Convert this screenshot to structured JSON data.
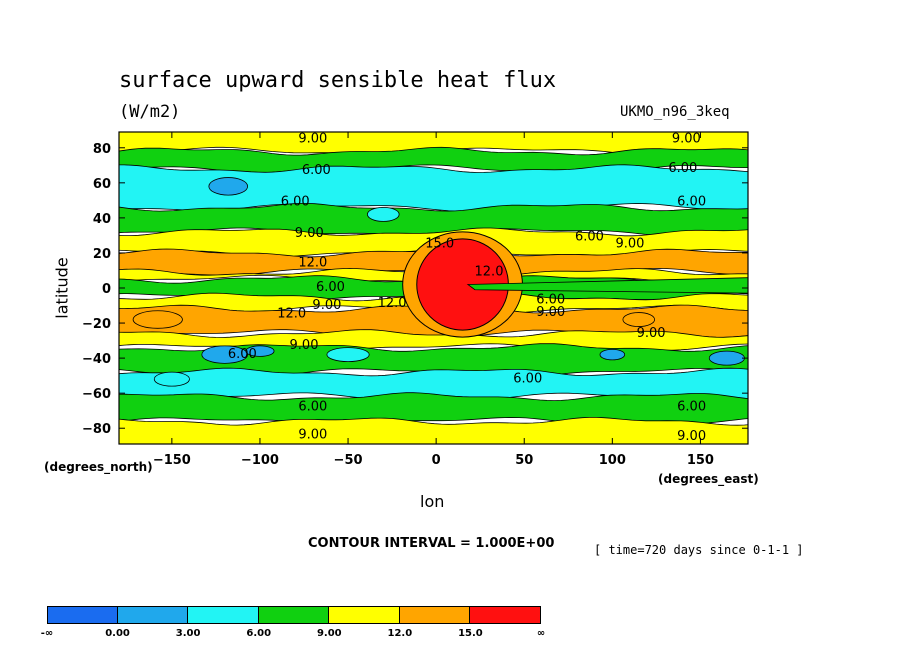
{
  "header": {
    "title": "surface upward sensible heat flux",
    "units": "(W/m2)",
    "model": "UKMO_n96_3keq"
  },
  "axes": {
    "xlabel": "lon",
    "ylabel": "latitude",
    "xunit_note": "(degrees_east)",
    "yunit_note": "(degrees_north)"
  },
  "footer": {
    "contour_interval": "CONTOUR INTERVAL = 1.000E+00",
    "time": "[ time=720 days since 0-1-1 ]"
  },
  "colorbar": {
    "labels": [
      "-∞",
      "0.00",
      "3.00",
      "6.00",
      "9.00",
      "12.0",
      "15.0",
      "∞"
    ],
    "colors": [
      "#1a6cf0",
      "#20a8ec",
      "#22f4f4",
      "#10d010",
      "#ffff00",
      "#ffa500",
      "#ff1010"
    ]
  },
  "chart_data": {
    "type": "heatmap",
    "title": "surface upward sensible heat flux",
    "subtitle": "(W/m2)",
    "xlabel": "lon",
    "ylabel": "latitude",
    "xlim": [
      -180,
      177
    ],
    "ylim": [
      -89,
      89
    ],
    "xticks": [
      -150,
      -100,
      -50,
      0,
      50,
      100,
      150
    ],
    "yticks": [
      80,
      60,
      40,
      20,
      0,
      -20,
      -40,
      -60,
      -80
    ],
    "levels": [
      0,
      3,
      6,
      9,
      12,
      15
    ],
    "level_colors": [
      "#1a6cf0",
      "#20a8ec",
      "#22f4f4",
      "#10d010",
      "#ffff00",
      "#ffa500",
      "#ff1010"
    ],
    "bands_by_latitude": [
      {
        "lat_min": 78,
        "lat_max": 89,
        "level": 9
      },
      {
        "lat_min": 68,
        "lat_max": 78,
        "level": 6
      },
      {
        "lat_min": 46,
        "lat_max": 68,
        "level": 3
      },
      {
        "lat_min": 32,
        "lat_max": 46,
        "level": 6
      },
      {
        "lat_min": 20,
        "lat_max": 32,
        "level": 9
      },
      {
        "lat_min": 9,
        "lat_max": 20,
        "level": 12
      },
      {
        "lat_min": 5,
        "lat_max": 9,
        "level": 9
      },
      {
        "lat_min": -5,
        "lat_max": 5,
        "level": 6
      },
      {
        "lat_min": -12,
        "lat_max": -5,
        "level": 9
      },
      {
        "lat_min": -26,
        "lat_max": -12,
        "level": 12
      },
      {
        "lat_min": -34,
        "lat_max": -26,
        "level": 9
      },
      {
        "lat_min": -48,
        "lat_max": -34,
        "level": 6
      },
      {
        "lat_min": -62,
        "lat_max": -48,
        "level": 3
      },
      {
        "lat_min": -76,
        "lat_max": -62,
        "level": 6
      },
      {
        "lat_min": -89,
        "lat_max": -76,
        "level": 9
      }
    ],
    "features": [
      {
        "name": "african-maximum",
        "lon_center": 15,
        "lat_center": 2,
        "peak_level": 15
      },
      {
        "name": "southern-blue-patches",
        "lon_center": -120,
        "lat_center": -40,
        "level": 0
      },
      {
        "name": "northern-blue-patch",
        "lon_center": -115,
        "lat_center": 58,
        "level": 0
      }
    ],
    "contour_labels": [
      {
        "text": "9.00",
        "lon": -70,
        "lat": 86
      },
      {
        "text": "9.00",
        "lon": 142,
        "lat": 86
      },
      {
        "text": "6.00",
        "lon": -68,
        "lat": 68
      },
      {
        "text": "6.00",
        "lon": 140,
        "lat": 69
      },
      {
        "text": "6.00",
        "lon": -80,
        "lat": 50
      },
      {
        "text": "6.00",
        "lon": 145,
        "lat": 50
      },
      {
        "text": "6.00",
        "lon": 87,
        "lat": 30
      },
      {
        "text": "9.00",
        "lon": 110,
        "lat": 26
      },
      {
        "text": "9.00",
        "lon": -72,
        "lat": 32
      },
      {
        "text": "15.0",
        "lon": 2,
        "lat": 26
      },
      {
        "text": "12.0",
        "lon": -70,
        "lat": 15
      },
      {
        "text": "12.0",
        "lon": 30,
        "lat": 10
      },
      {
        "text": "6.00",
        "lon": -60,
        "lat": 1
      },
      {
        "text": "9.00",
        "lon": -62,
        "lat": -9
      },
      {
        "text": "12.0",
        "lon": -82,
        "lat": -14
      },
      {
        "text": "12.0",
        "lon": -25,
        "lat": -8
      },
      {
        "text": "6.00",
        "lon": 65,
        "lat": -6
      },
      {
        "text": "9.00",
        "lon": 65,
        "lat": -13
      },
      {
        "text": "9.00",
        "lon": 122,
        "lat": -25
      },
      {
        "text": "9.00",
        "lon": -75,
        "lat": -32
      },
      {
        "text": "6.00",
        "lon": -110,
        "lat": -37
      },
      {
        "text": "6.00",
        "lon": 52,
        "lat": -51
      },
      {
        "text": "6.00",
        "lon": -70,
        "lat": -67
      },
      {
        "text": "6.00",
        "lon": 145,
        "lat": -67
      },
      {
        "text": "9.00",
        "lon": -70,
        "lat": -83
      },
      {
        "text": "9.00",
        "lon": 145,
        "lat": -84
      }
    ]
  }
}
